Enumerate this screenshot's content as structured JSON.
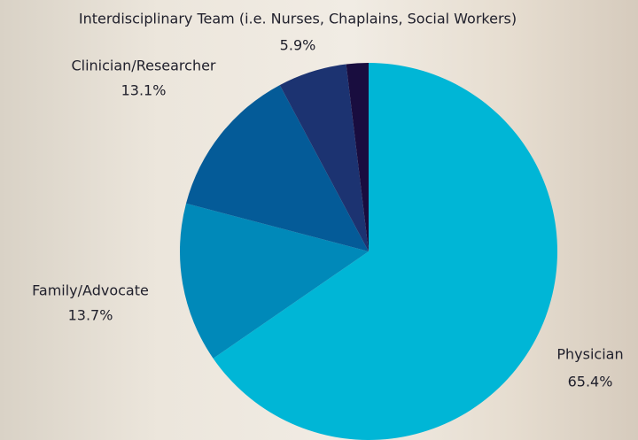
{
  "chart_data": {
    "type": "pie",
    "categories": [
      "Physician",
      "Family/Advocate",
      "Clinician/Researcher",
      "Interdisciplinary Team (i.e. Nurses, Chaplains, Social Workers)",
      null
    ],
    "values": [
      65.4,
      13.7,
      13.1,
      5.9,
      1.9
    ],
    "value_labels": [
      "65.4%",
      "13.7%",
      "13.1%",
      "5.9%",
      null
    ],
    "colors": [
      "#00b6d6",
      "#0089b9",
      "#045b98",
      "#1c3371",
      "#190d3f"
    ],
    "start_angle": 0,
    "direction": "clockwise"
  }
}
